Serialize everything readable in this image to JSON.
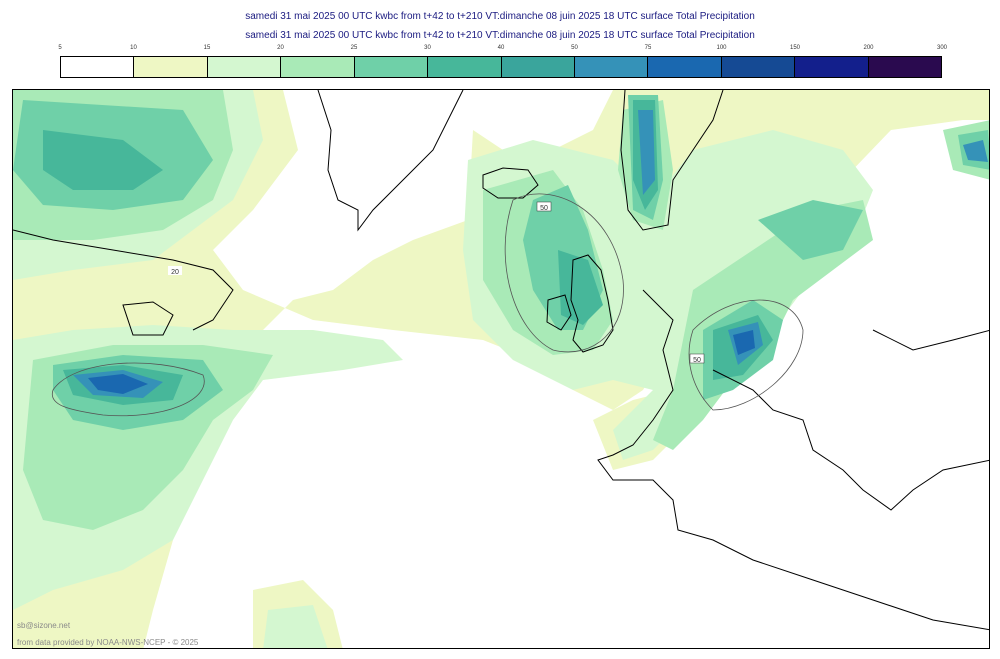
{
  "header": {
    "title_line1": "samedi 31 mai 2025 00 UTC kwbc from t+42 to t+210 VT:dimanche 08 juin 2025 18 UTC surface  Total Precipitation",
    "title_line2": "samedi 31 mai 2025 00 UTC kwbc from t+42 to t+210 VT:dimanche 08 juin 2025 18 UTC surface  Total Precipitation"
  },
  "legend": {
    "ticks": [
      "5",
      "10",
      "15",
      "20",
      "25",
      "30",
      "40",
      "50",
      "75",
      "100",
      "150",
      "200",
      "300"
    ],
    "colors": [
      "#ffffff",
      "#eef7c4",
      "#d4f7d0",
      "#a9eab7",
      "#6fd0a8",
      "#47b79a",
      "#3aa59c",
      "#3592b8",
      "#1a68b0",
      "#154a94",
      "#131f8c",
      "#2a0a4f",
      "#6a2a63"
    ]
  },
  "map": {
    "contour_labels": [
      "20",
      "50",
      "50"
    ]
  },
  "footer": {
    "credit_site": "sb@sizone.net",
    "credit_data": "from data provided by NOAA-NWS-NCEP - © 2025"
  }
}
